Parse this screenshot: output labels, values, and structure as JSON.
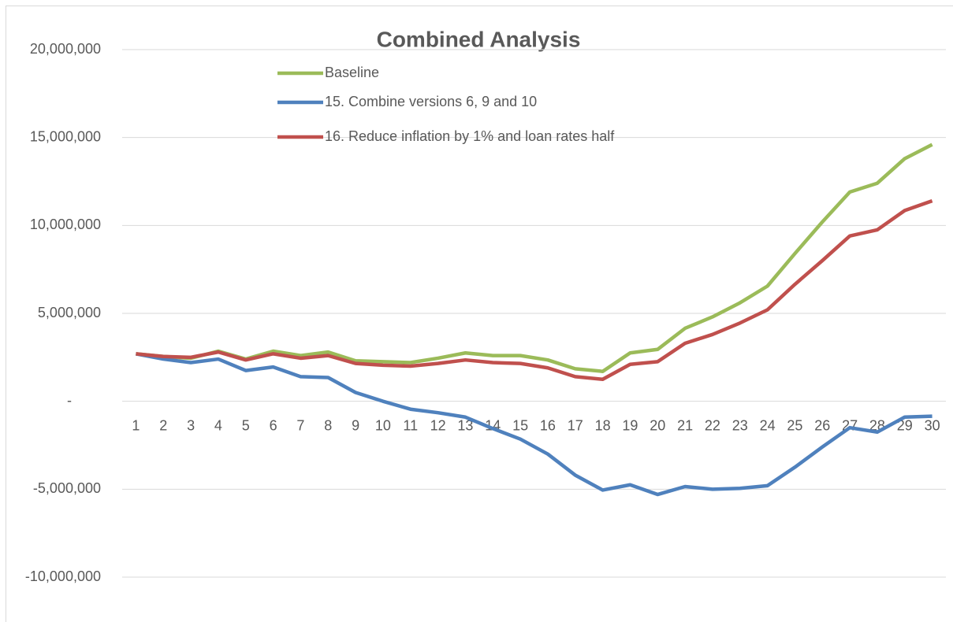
{
  "chart_data": {
    "type": "line",
    "title": "Combined Analysis",
    "categories": [
      "1",
      "2",
      "3",
      "4",
      "5",
      "6",
      "7",
      "8",
      "9",
      "10",
      "11",
      "12",
      "13",
      "14",
      "15",
      "16",
      "17",
      "18",
      "19",
      "20",
      "21",
      "22",
      "23",
      "24",
      "25",
      "26",
      "27",
      "28",
      "29",
      "30"
    ],
    "series": [
      {
        "name": "Baseline",
        "color": "#9bbb59",
        "values": [
          2700000,
          2550000,
          2450000,
          2850000,
          2400000,
          2850000,
          2600000,
          2800000,
          2300000,
          2250000,
          2200000,
          2450000,
          2750000,
          2600000,
          2600000,
          2350000,
          1850000,
          1700000,
          2750000,
          2950000,
          4150000,
          4800000,
          5600000,
          6550000,
          8400000,
          10200000,
          11900000,
          12400000,
          13800000,
          14600000
        ]
      },
      {
        "name": "15. Combine versions 6, 9 and 10",
        "color": "#4f81bd",
        "values": [
          2700000,
          2400000,
          2200000,
          2400000,
          1750000,
          1950000,
          1400000,
          1350000,
          500000,
          0,
          -450000,
          -650000,
          -900000,
          -1550000,
          -2150000,
          -3000000,
          -4200000,
          -5050000,
          -4750000,
          -5300000,
          -4850000,
          -5000000,
          -4950000,
          -4800000,
          -3750000,
          -2600000,
          -1500000,
          -1750000,
          -900000,
          -850000
        ]
      },
      {
        "name": "16. Reduce inflation by 1% and loan rates half",
        "color": "#c0504d",
        "values": [
          2700000,
          2550000,
          2500000,
          2800000,
          2350000,
          2700000,
          2450000,
          2600000,
          2150000,
          2050000,
          2000000,
          2150000,
          2350000,
          2200000,
          2150000,
          1900000,
          1400000,
          1250000,
          2100000,
          2250000,
          3300000,
          3800000,
          4450000,
          5200000,
          6650000,
          8000000,
          9400000,
          9750000,
          10850000,
          11400000
        ]
      }
    ],
    "ylim": [
      -10000000,
      20000000
    ],
    "yticks": [
      {
        "value": -10000000,
        "label": "-10,000,000"
      },
      {
        "value": -5000000,
        "label": "-5,000,000"
      },
      {
        "value": 0,
        "label": "-"
      },
      {
        "value": 5000000,
        "label": "5,000,000"
      },
      {
        "value": 10000000,
        "label": "10,000,000"
      },
      {
        "value": 15000000,
        "label": "15,000,000"
      },
      {
        "value": 20000000,
        "label": "20,000,000"
      }
    ],
    "grid": true,
    "legend": "top-left"
  }
}
